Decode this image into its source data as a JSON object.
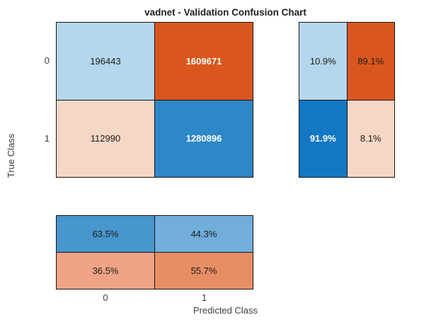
{
  "title": "vadnet - Validation Confusion Chart",
  "axis": {
    "y_label": "True Class",
    "x_label": "Predicted Class",
    "y_ticks": [
      "0",
      "1"
    ],
    "x_ticks": [
      "0",
      "1"
    ]
  },
  "colors": {
    "background": "#ffffff",
    "grid_border": "#141414",
    "dark_text": "#1a1a1a",
    "white_text": "#ffffff",
    "axis_text": "#3d3d3d"
  },
  "panels": {
    "main": {
      "cells": [
        {
          "value": "196443",
          "bg": "#b5d7eb",
          "fg": "#1a1a1a",
          "weight": "normal"
        },
        {
          "value": "1609671",
          "bg": "#d9571e",
          "fg": "#ffffff",
          "weight": "bold"
        },
        {
          "value": "112990",
          "bg": "#f5d7c6",
          "fg": "#1a1a1a",
          "weight": "normal"
        },
        {
          "value": "1280896",
          "bg": "#2e87c6",
          "fg": "#ffffff",
          "weight": "bold"
        }
      ]
    },
    "row_summary": {
      "cells": [
        {
          "value": "10.9%",
          "bg": "#b5d7eb",
          "fg": "#1a1a1a",
          "weight": "normal"
        },
        {
          "value": "89.1%",
          "bg": "#d9571e",
          "fg": "#1a1a1a",
          "weight": "normal"
        },
        {
          "value": "91.9%",
          "bg": "#1377c4",
          "fg": "#ffffff",
          "weight": "bold"
        },
        {
          "value": "8.1%",
          "bg": "#f5d7c6",
          "fg": "#1a1a1a",
          "weight": "normal"
        }
      ]
    },
    "col_summary": {
      "cells": [
        {
          "value": "63.5%",
          "bg": "#4896ce",
          "fg": "#1a1a1a",
          "weight": "normal"
        },
        {
          "value": "44.3%",
          "bg": "#72aedb",
          "fg": "#1a1a1a",
          "weight": "normal"
        },
        {
          "value": "36.5%",
          "bg": "#f0a385",
          "fg": "#1a1a1a",
          "weight": "normal"
        },
        {
          "value": "55.7%",
          "bg": "#e88e65",
          "fg": "#1a1a1a",
          "weight": "normal"
        }
      ]
    }
  },
  "chart_data": {
    "type": "heatmap",
    "title": "vadnet - Validation Confusion Chart",
    "xlabel": "Predicted Class",
    "ylabel": "True Class",
    "classes": [
      "0",
      "1"
    ],
    "matrix_counts": [
      [
        196443,
        1609671
      ],
      [
        112990,
        1280896
      ]
    ],
    "row_summary_pct": [
      [
        10.9,
        89.1
      ],
      [
        91.9,
        8.1
      ]
    ],
    "column_summary_pct": [
      [
        63.5,
        44.3
      ],
      [
        36.5,
        55.7
      ]
    ],
    "layout": {
      "row_summary_position": "right",
      "column_summary_position": "bottom",
      "grid": "on"
    }
  }
}
